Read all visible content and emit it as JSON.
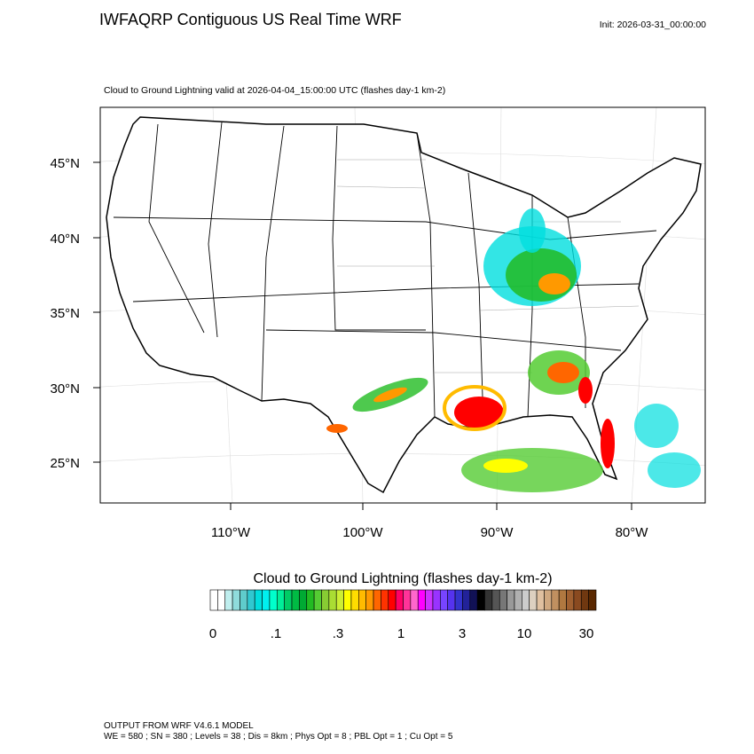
{
  "header": {
    "title": "IWFAQRP Contiguous US Real Time WRF",
    "init": "Init: 2026-03-31_00:00:00"
  },
  "map": {
    "subtitle": "Cloud to Ground Lightning valid at 2026-04-04_15:00:00 UTC   (flashes day-1 km-2)",
    "lat_labels": [
      "45°N",
      "40°N",
      "35°N",
      "30°N",
      "25°N"
    ],
    "lon_labels": [
      "110°W",
      "100°W",
      "90°W",
      "80°W"
    ]
  },
  "colorbar": {
    "title": "Cloud to Ground Lightning  (flashes day-1 km-2)",
    "labels": [
      "0",
      ".1",
      ".3",
      "1",
      "3",
      "10",
      "30"
    ],
    "colors": [
      "#ffffff",
      "#ffffff",
      "#bfeeee",
      "#8fdcdc",
      "#5fcccc",
      "#30c8d0",
      "#00dede",
      "#00f0f0",
      "#00ffcc",
      "#00ee99",
      "#00cc66",
      "#00bb44",
      "#00aa33",
      "#22bb22",
      "#55cc33",
      "#88cc33",
      "#aadd33",
      "#ccee33",
      "#ffff00",
      "#ffdd00",
      "#ffbb00",
      "#ff9900",
      "#ff6600",
      "#ff3300",
      "#ff0000",
      "#ff0066",
      "#ff3399",
      "#ff66cc",
      "#ff00ff",
      "#cc33ff",
      "#9933ff",
      "#7744ff",
      "#5533ee",
      "#3333cc",
      "#222299",
      "#111155",
      "#000000",
      "#333333",
      "#555555",
      "#777777",
      "#999999",
      "#b0b0b0",
      "#cccccc",
      "#ddd0c0",
      "#e0c0a0",
      "#d0a880",
      "#c09060",
      "#b07840",
      "#a06030",
      "#8a4a20",
      "#703810",
      "#5a2800"
    ]
  },
  "footer": {
    "line1": "OUTPUT FROM WRF V4.6.1 MODEL",
    "line2": "WE = 580 ; SN = 380 ; Levels = 38 ; Dis = 8km ; Phys Opt = 8 ; PBL Opt = 1 ; Cu Opt = 5"
  }
}
